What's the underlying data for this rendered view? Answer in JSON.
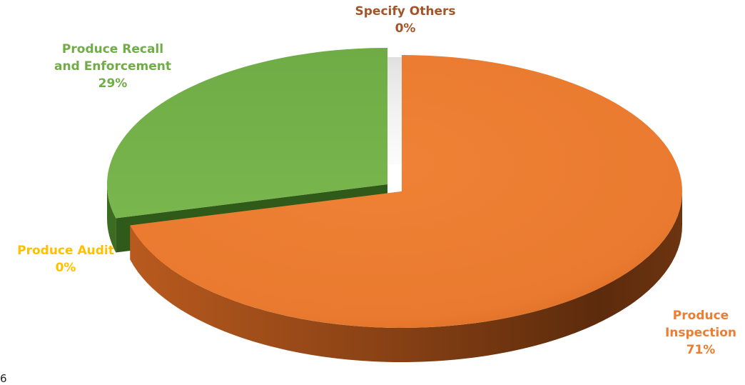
{
  "chart_data": {
    "type": "pie",
    "style": "3d",
    "title": "",
    "categories": [
      "Produce Inspection",
      "Produce Recall and Enforcement",
      "Specify Others",
      "Produce Audit"
    ],
    "values": [
      71,
      29,
      0,
      0
    ],
    "data_labels": [
      {
        "lines": [
          "Produce",
          "Inspection"
        ],
        "value": "71%"
      },
      {
        "lines": [
          "Produce Recall",
          "and Enforcement"
        ],
        "value": "29%"
      },
      {
        "lines": [
          "Specify Others"
        ],
        "value": "0%"
      },
      {
        "lines": [
          "Produce Audit"
        ],
        "value": "0%"
      }
    ],
    "colors": {
      "Produce Inspection": "#ED7D31",
      "Produce Recall and Enforcement": "#70AD47",
      "Specify Others": "#A5542A",
      "Produce Audit": "#FFC000"
    },
    "legend": "none"
  },
  "stray_text": "6"
}
